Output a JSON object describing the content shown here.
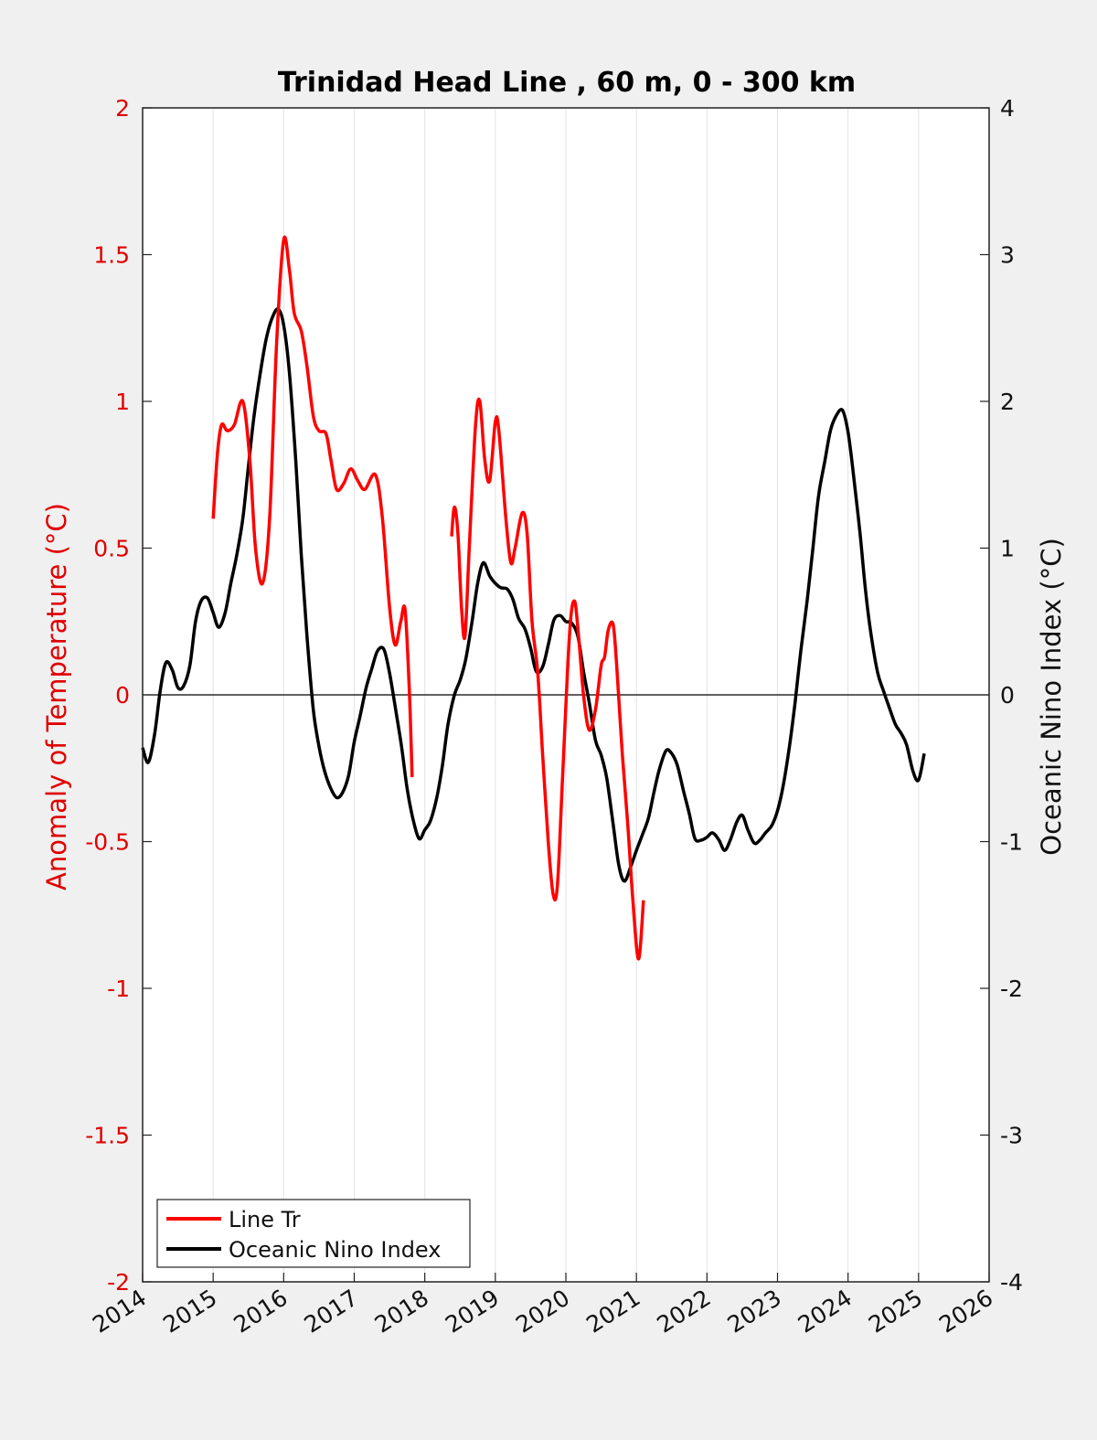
{
  "chart_data": {
    "type": "line",
    "title": "Trinidad Head Line , 60 m, 0 - 300 km",
    "ylabel_left": "Anomaly of Temperature (°C)",
    "ylabel_right": "Oceanic Nino Index (°C)",
    "xlim": [
      2014,
      2026
    ],
    "ylim_left": [
      -2,
      2
    ],
    "ylim_right": [
      -4,
      4
    ],
    "x_ticks": [
      "2014",
      "2015",
      "2016",
      "2017",
      "2018",
      "2019",
      "2020",
      "2021",
      "2022",
      "2023",
      "2024",
      "2025",
      "2026"
    ],
    "y_ticks_left": [
      "2",
      "1.5",
      "1",
      "0.5",
      "0",
      "-0.5",
      "-1",
      "-1.5",
      "-2"
    ],
    "y_ticks_right": [
      "4",
      "3",
      "2",
      "1",
      "0",
      "-1",
      "-2",
      "-3",
      "-4"
    ],
    "grid": "vertical",
    "legend_position": "bottom-left",
    "colors": {
      "line_tr": "#ff0000",
      "oni": "#000000"
    },
    "series": [
      {
        "name": "Line Tr",
        "axis": "left",
        "segments": [
          [
            [
              2015.0,
              0.6
            ],
            [
              2015.06,
              0.82
            ],
            [
              2015.12,
              0.92
            ],
            [
              2015.2,
              0.9
            ],
            [
              2015.3,
              0.92
            ],
            [
              2015.42,
              1.0
            ],
            [
              2015.52,
              0.8
            ],
            [
              2015.6,
              0.5
            ],
            [
              2015.7,
              0.38
            ],
            [
              2015.8,
              0.6
            ],
            [
              2015.9,
              1.2
            ],
            [
              2016.0,
              1.55
            ],
            [
              2016.08,
              1.45
            ],
            [
              2016.15,
              1.3
            ],
            [
              2016.25,
              1.24
            ],
            [
              2016.33,
              1.12
            ],
            [
              2016.42,
              0.95
            ],
            [
              2016.5,
              0.9
            ],
            [
              2016.6,
              0.89
            ],
            [
              2016.67,
              0.8
            ],
            [
              2016.75,
              0.7
            ],
            [
              2016.85,
              0.72
            ],
            [
              2016.95,
              0.77
            ],
            [
              2017.05,
              0.73
            ],
            [
              2017.15,
              0.7
            ],
            [
              2017.3,
              0.75
            ],
            [
              2017.4,
              0.6
            ],
            [
              2017.5,
              0.3
            ],
            [
              2017.58,
              0.17
            ],
            [
              2017.66,
              0.25
            ],
            [
              2017.72,
              0.29
            ],
            [
              2017.78,
              0.02
            ],
            [
              2017.82,
              -0.28
            ]
          ],
          [
            [
              2018.38,
              0.54
            ],
            [
              2018.42,
              0.64
            ],
            [
              2018.47,
              0.55
            ],
            [
              2018.52,
              0.3
            ],
            [
              2018.57,
              0.2
            ],
            [
              2018.63,
              0.5
            ],
            [
              2018.72,
              0.92
            ],
            [
              2018.78,
              1.0
            ],
            [
              2018.85,
              0.8
            ],
            [
              2018.92,
              0.73
            ],
            [
              2019.0,
              0.93
            ],
            [
              2019.05,
              0.9
            ],
            [
              2019.15,
              0.6
            ],
            [
              2019.22,
              0.45
            ],
            [
              2019.28,
              0.5
            ],
            [
              2019.38,
              0.62
            ],
            [
              2019.45,
              0.55
            ],
            [
              2019.52,
              0.25
            ],
            [
              2019.6,
              0.08
            ],
            [
              2019.67,
              -0.2
            ],
            [
              2019.75,
              -0.5
            ],
            [
              2019.82,
              -0.68
            ],
            [
              2019.88,
              -0.65
            ],
            [
              2019.95,
              -0.3
            ],
            [
              2020.05,
              0.2
            ],
            [
              2020.12,
              0.32
            ],
            [
              2020.18,
              0.2
            ],
            [
              2020.25,
              0.0
            ],
            [
              2020.33,
              -0.12
            ],
            [
              2020.42,
              -0.05
            ],
            [
              2020.5,
              0.1
            ],
            [
              2020.55,
              0.13
            ],
            [
              2020.6,
              0.22
            ],
            [
              2020.67,
              0.24
            ],
            [
              2020.72,
              0.1
            ],
            [
              2020.8,
              -0.2
            ],
            [
              2020.88,
              -0.45
            ],
            [
              2020.95,
              -0.7
            ],
            [
              2021.03,
              -0.9
            ],
            [
              2021.1,
              -0.7
            ]
          ]
        ]
      },
      {
        "name": "Oceanic Nino Index",
        "axis": "right",
        "values": [
          [
            2014.0,
            -0.36
          ],
          [
            2014.08,
            -0.46
          ],
          [
            2014.17,
            -0.27
          ],
          [
            2014.25,
            0.03
          ],
          [
            2014.33,
            0.22
          ],
          [
            2014.42,
            0.17
          ],
          [
            2014.5,
            0.05
          ],
          [
            2014.58,
            0.06
          ],
          [
            2014.67,
            0.2
          ],
          [
            2014.75,
            0.5
          ],
          [
            2014.83,
            0.64
          ],
          [
            2014.92,
            0.66
          ],
          [
            2015.0,
            0.56
          ],
          [
            2015.08,
            0.46
          ],
          [
            2015.17,
            0.56
          ],
          [
            2015.25,
            0.76
          ],
          [
            2015.33,
            0.94
          ],
          [
            2015.42,
            1.2
          ],
          [
            2015.5,
            1.56
          ],
          [
            2015.58,
            1.9
          ],
          [
            2015.67,
            2.2
          ],
          [
            2015.75,
            2.42
          ],
          [
            2015.83,
            2.56
          ],
          [
            2015.92,
            2.63
          ],
          [
            2016.0,
            2.52
          ],
          [
            2016.08,
            2.2
          ],
          [
            2016.17,
            1.6
          ],
          [
            2016.25,
            0.95
          ],
          [
            2016.33,
            0.4
          ],
          [
            2016.42,
            -0.1
          ],
          [
            2016.5,
            -0.35
          ],
          [
            2016.58,
            -0.52
          ],
          [
            2016.67,
            -0.64
          ],
          [
            2016.75,
            -0.7
          ],
          [
            2016.83,
            -0.67
          ],
          [
            2016.92,
            -0.55
          ],
          [
            2017.0,
            -0.32
          ],
          [
            2017.08,
            -0.15
          ],
          [
            2017.17,
            0.05
          ],
          [
            2017.25,
            0.18
          ],
          [
            2017.33,
            0.3
          ],
          [
            2017.42,
            0.31
          ],
          [
            2017.5,
            0.15
          ],
          [
            2017.58,
            -0.08
          ],
          [
            2017.67,
            -0.35
          ],
          [
            2017.75,
            -0.64
          ],
          [
            2017.83,
            -0.84
          ],
          [
            2017.92,
            -0.98
          ],
          [
            2018.0,
            -0.92
          ],
          [
            2018.08,
            -0.86
          ],
          [
            2018.17,
            -0.7
          ],
          [
            2018.25,
            -0.48
          ],
          [
            2018.33,
            -0.2
          ],
          [
            2018.42,
            0.0
          ],
          [
            2018.5,
            0.1
          ],
          [
            2018.58,
            0.24
          ],
          [
            2018.67,
            0.5
          ],
          [
            2018.75,
            0.76
          ],
          [
            2018.83,
            0.9
          ],
          [
            2018.92,
            0.81
          ],
          [
            2019.0,
            0.76
          ],
          [
            2019.08,
            0.73
          ],
          [
            2019.17,
            0.72
          ],
          [
            2019.25,
            0.65
          ],
          [
            2019.33,
            0.52
          ],
          [
            2019.42,
            0.45
          ],
          [
            2019.5,
            0.32
          ],
          [
            2019.58,
            0.16
          ],
          [
            2019.67,
            0.19
          ],
          [
            2019.75,
            0.34
          ],
          [
            2019.83,
            0.51
          ],
          [
            2019.92,
            0.54
          ],
          [
            2020.0,
            0.5
          ],
          [
            2020.08,
            0.49
          ],
          [
            2020.17,
            0.4
          ],
          [
            2020.25,
            0.16
          ],
          [
            2020.33,
            -0.05
          ],
          [
            2020.42,
            -0.31
          ],
          [
            2020.5,
            -0.41
          ],
          [
            2020.58,
            -0.57
          ],
          [
            2020.67,
            -0.88
          ],
          [
            2020.75,
            -1.16
          ],
          [
            2020.83,
            -1.27
          ],
          [
            2020.92,
            -1.17
          ],
          [
            2021.0,
            -1.06
          ],
          [
            2021.08,
            -0.96
          ],
          [
            2021.17,
            -0.84
          ],
          [
            2021.25,
            -0.66
          ],
          [
            2021.33,
            -0.5
          ],
          [
            2021.42,
            -0.38
          ],
          [
            2021.5,
            -0.4
          ],
          [
            2021.58,
            -0.48
          ],
          [
            2021.67,
            -0.66
          ],
          [
            2021.75,
            -0.81
          ],
          [
            2021.83,
            -0.98
          ],
          [
            2021.92,
            -0.99
          ],
          [
            2022.0,
            -0.97
          ],
          [
            2022.08,
            -0.94
          ],
          [
            2022.17,
            -0.99
          ],
          [
            2022.25,
            -1.06
          ],
          [
            2022.33,
            -0.99
          ],
          [
            2022.42,
            -0.87
          ],
          [
            2022.5,
            -0.82
          ],
          [
            2022.58,
            -0.92
          ],
          [
            2022.67,
            -1.01
          ],
          [
            2022.75,
            -0.99
          ],
          [
            2022.83,
            -0.94
          ],
          [
            2022.92,
            -0.89
          ],
          [
            2023.0,
            -0.79
          ],
          [
            2023.08,
            -0.62
          ],
          [
            2023.17,
            -0.35
          ],
          [
            2023.25,
            -0.05
          ],
          [
            2023.33,
            0.3
          ],
          [
            2023.42,
            0.64
          ],
          [
            2023.5,
            0.99
          ],
          [
            2023.58,
            1.35
          ],
          [
            2023.67,
            1.59
          ],
          [
            2023.75,
            1.8
          ],
          [
            2023.83,
            1.9
          ],
          [
            2023.92,
            1.94
          ],
          [
            2024.0,
            1.79
          ],
          [
            2024.08,
            1.49
          ],
          [
            2024.17,
            1.1
          ],
          [
            2024.25,
            0.7
          ],
          [
            2024.33,
            0.4
          ],
          [
            2024.42,
            0.15
          ],
          [
            2024.5,
            0.03
          ],
          [
            2024.58,
            -0.08
          ],
          [
            2024.67,
            -0.2
          ],
          [
            2024.75,
            -0.26
          ],
          [
            2024.83,
            -0.34
          ],
          [
            2024.92,
            -0.52
          ],
          [
            2025.0,
            -0.58
          ],
          [
            2025.08,
            -0.4
          ]
        ]
      }
    ]
  },
  "legend": [
    {
      "label": "Line Tr",
      "color": "#ff0000"
    },
    {
      "label": "Oceanic Nino Index",
      "color": "#000000"
    }
  ]
}
